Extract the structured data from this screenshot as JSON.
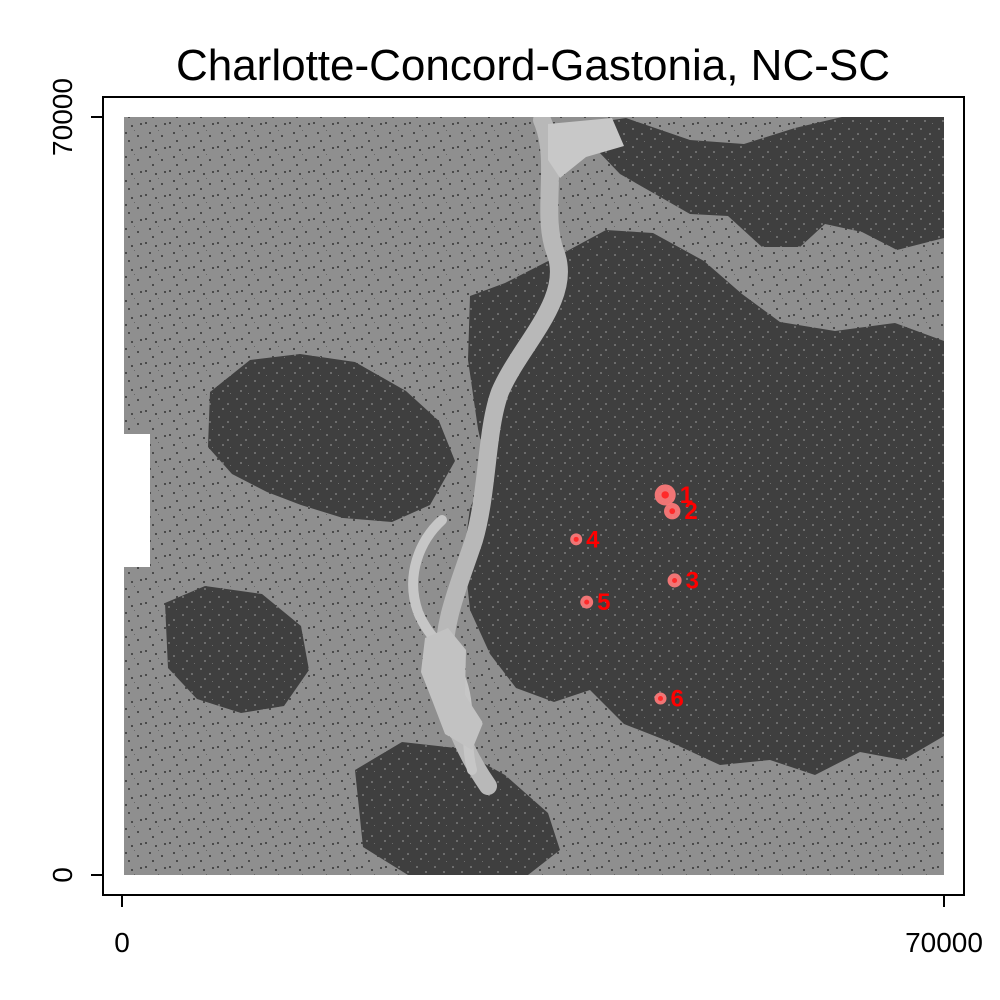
{
  "chart_data": {
    "type": "map",
    "title": "Charlotte-Concord-Gastonia, NC-SC",
    "xlabel": "",
    "ylabel": "",
    "xlim": [
      0,
      70000
    ],
    "ylim": [
      0,
      70000
    ],
    "x_ticks": [
      "0",
      "70000"
    ],
    "y_ticks": [
      "0",
      "70000"
    ],
    "grid": false,
    "legend": "none",
    "colors": {
      "frame": "#000000",
      "background_land": "#8f8f8f",
      "developed_dark": "#3d3d3d",
      "water_light": "#bdbdbd",
      "marker_fill": "#ff7a7a",
      "marker_center": "#ff2a2a",
      "marker_label": "#ff0000"
    },
    "points": [
      {
        "label": "1",
        "x": 46200,
        "y": 35100,
        "radius": 900
      },
      {
        "label": "2",
        "x": 46800,
        "y": 33600,
        "radius": 700
      },
      {
        "label": "3",
        "x": 47000,
        "y": 27200,
        "radius": 600
      },
      {
        "label": "4",
        "x": 38600,
        "y": 31000,
        "radius": 450
      },
      {
        "label": "5",
        "x": 39500,
        "y": 25200,
        "radius": 550
      },
      {
        "label": "6",
        "x": 45800,
        "y": 16300,
        "radius": 400
      }
    ]
  }
}
